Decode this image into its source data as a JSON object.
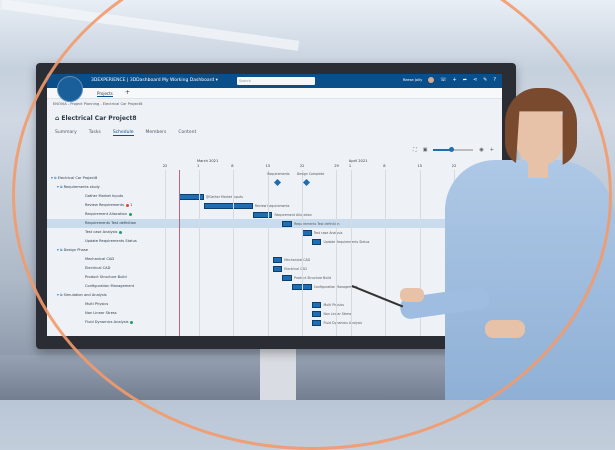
{
  "app": {
    "brand": "3DEXPERIENCE",
    "title": "3DEXPERIENCE | 3DDashboard",
    "dashboard": "My Working Dashboard",
    "search_placeholder": "Search",
    "user": "Reese Jolly",
    "tab": "Projects"
  },
  "breadcrumb": "ENOVIA - Project Planning - Electrical Car Project8",
  "project_title": "Electrical Car Project8",
  "tabs": [
    {
      "label": "Summary"
    },
    {
      "label": "Tasks"
    },
    {
      "label": "Schedule",
      "active": true
    },
    {
      "label": "Members"
    },
    {
      "label": "Content"
    }
  ],
  "timeline": {
    "months": [
      {
        "label": "March 2021",
        "date": "2021-03-01"
      },
      {
        "label": "April 2021",
        "date": "2021-04-01"
      }
    ],
    "ticks": [
      {
        "label": "22",
        "date": "2021-02-22"
      },
      {
        "label": "1",
        "date": "2021-03-01"
      },
      {
        "label": "8",
        "date": "2021-03-08"
      },
      {
        "label": "15",
        "date": "2021-03-15"
      },
      {
        "label": "22",
        "date": "2021-03-22"
      },
      {
        "label": "29",
        "date": "2021-03-29"
      },
      {
        "label": "1",
        "date": "2021-04-01"
      },
      {
        "label": "8",
        "date": "2021-04-08"
      },
      {
        "label": "15",
        "date": "2021-04-15"
      },
      {
        "label": "22",
        "date": "2021-04-22"
      },
      {
        "label": "29",
        "date": "2021-04-29"
      }
    ],
    "today": "2021-02-25"
  },
  "zoom_level": 0.45,
  "milestones": [
    {
      "label": "Requirements",
      "date": "2021-03-17"
    },
    {
      "label": "Design Complete",
      "date": "2021-03-23"
    }
  ],
  "tasks": [
    {
      "name": "Electrical Car Project8",
      "level": 0,
      "group": true
    },
    {
      "name": "Requirements study",
      "level": 1,
      "group": true
    },
    {
      "name": "Gather Market Inputs",
      "level": 2,
      "start": "2021-02-25",
      "end": "2021-03-02",
      "bar_label": "@Gather Market Inputs"
    },
    {
      "name": "Review Requirements",
      "level": 2,
      "start": "2021-03-02",
      "end": "2021-03-12",
      "bar_label": "Review Requirements",
      "status": "red",
      "badge": "1"
    },
    {
      "name": "Requirement Allocation",
      "level": 2,
      "start": "2021-03-12",
      "end": "2021-03-16",
      "bar_label": "Requirement Allocation",
      "status": "green"
    },
    {
      "name": "Requirements Test definition",
      "level": 2,
      "start": "2021-03-18",
      "end": "2021-03-20",
      "bar_label": "Requirements Test definition",
      "highlight": true
    },
    {
      "name": "Test case Analysis",
      "level": 2,
      "start": "2021-03-22",
      "end": "2021-03-24",
      "bar_label": "Test case Analysis",
      "status": "green"
    },
    {
      "name": "Update Requirements Status",
      "level": 2,
      "start": "2021-03-24",
      "end": "2021-03-26",
      "bar_label": "Update Requirements Status"
    },
    {
      "name": "Design Phase",
      "level": 1,
      "group": true
    },
    {
      "name": "Mechanical CAD",
      "level": 2,
      "start": "2021-03-16",
      "end": "2021-03-18",
      "bar_label": "Mechanical CAD"
    },
    {
      "name": "Electrical CAD",
      "level": 2,
      "start": "2021-03-16",
      "end": "2021-03-18",
      "bar_label": "Electrical CAD"
    },
    {
      "name": "Product Structure Build",
      "level": 2,
      "start": "2021-03-18",
      "end": "2021-03-20",
      "bar_label": "Product Structure Build"
    },
    {
      "name": "Configuration Management",
      "level": 2,
      "start": "2021-03-20",
      "end": "2021-03-24",
      "bar_label": "Configuration Management"
    },
    {
      "name": "Simulation and Analysis",
      "level": 1,
      "group": true
    },
    {
      "name": "Multi Physics",
      "level": 2,
      "start": "2021-03-24",
      "end": "2021-03-26",
      "bar_label": "Multi Physics"
    },
    {
      "name": "Non Linear Stress",
      "level": 2,
      "start": "2021-03-24",
      "end": "2021-03-26",
      "bar_label": "Non Linear Stress"
    },
    {
      "name": "Fluid Dynamics Analysis",
      "level": 2,
      "start": "2021-03-24",
      "end": "2021-03-26",
      "bar_label": "Fluid Dynamics Analysis",
      "status": "green"
    }
  ],
  "colors": {
    "accent": "#0b4f8a",
    "bar": "#1f6db3",
    "ring": "#f39a6a",
    "green": "#1e9e6a",
    "red": "#e0483b"
  }
}
